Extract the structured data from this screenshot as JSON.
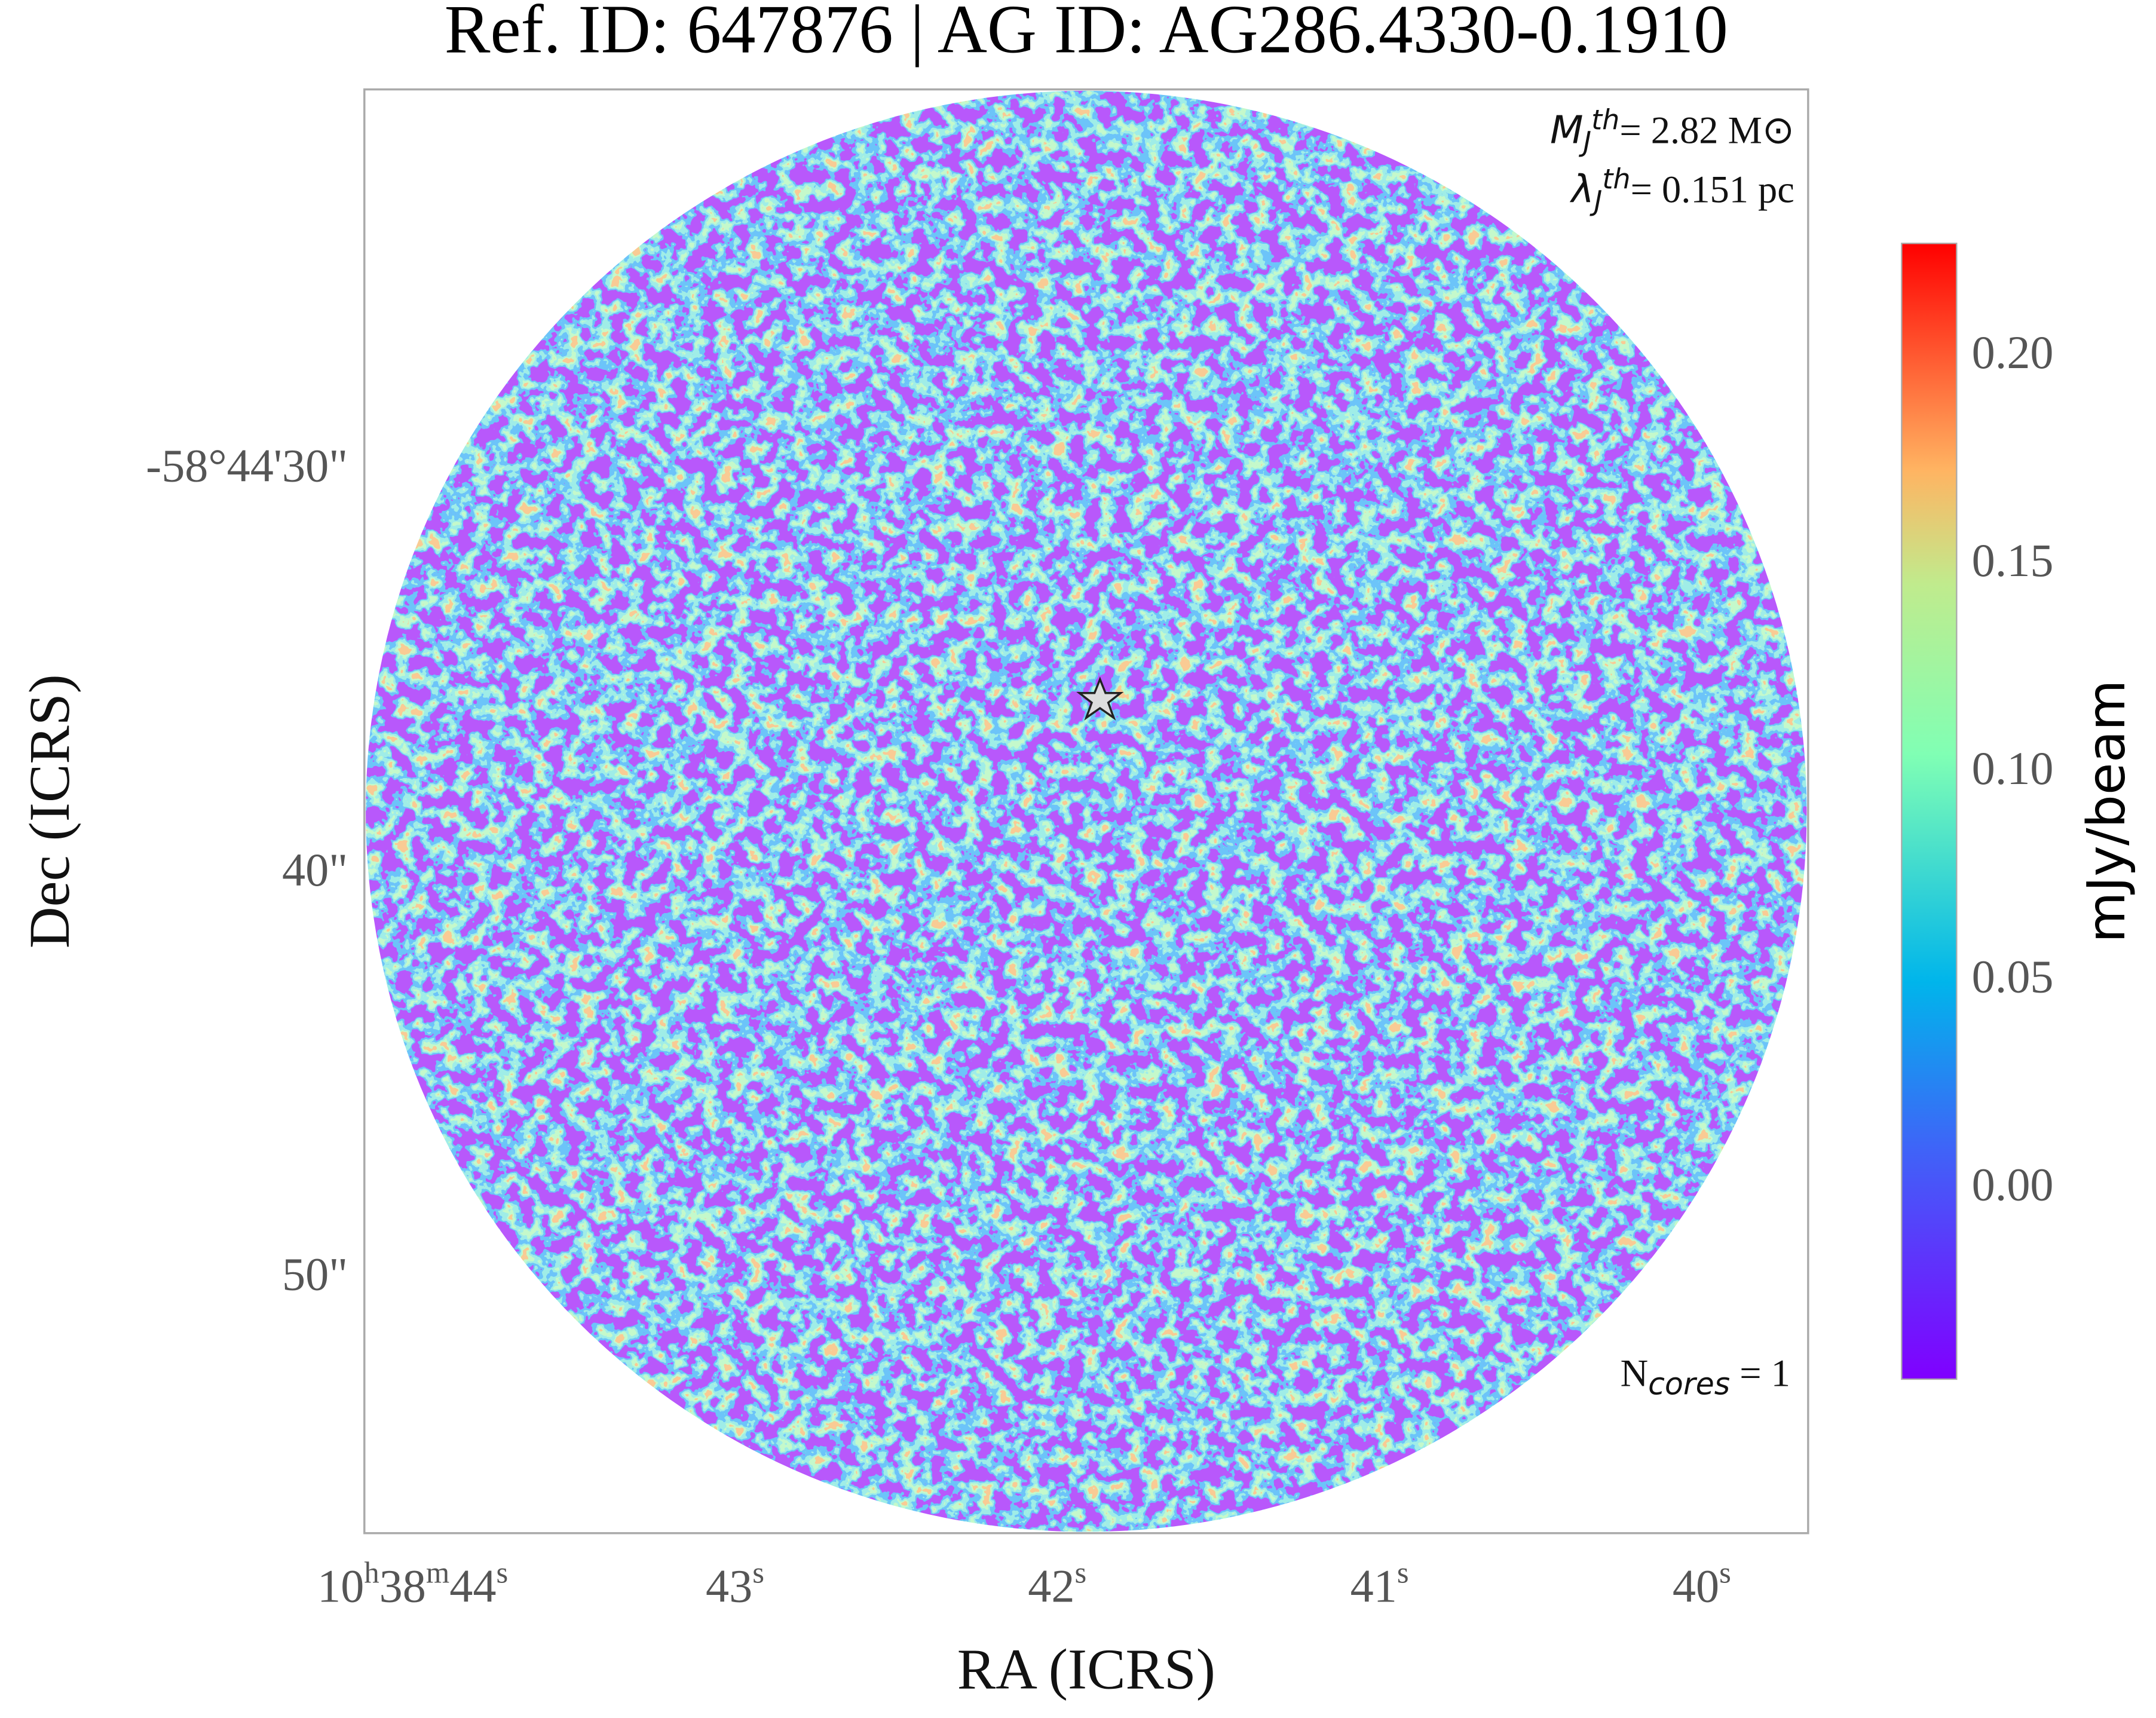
{
  "chart_data": {
    "type": "image",
    "title": "Ref. ID: 647876 | AG ID: AG286.4330-0.1910",
    "xlabel": "RA (ICRS)",
    "ylabel": "Dec (ICRS)",
    "xlim": [
      44.15,
      39.67
    ],
    "xticks": [
      {
        "value": 44,
        "label": "10h38m44s"
      },
      {
        "value": 43,
        "label": "43s"
      },
      {
        "value": 42,
        "label": "42s"
      },
      {
        "value": 41,
        "label": "41s"
      },
      {
        "value": 40,
        "label": "40s"
      }
    ],
    "ylim": [
      56.43,
      20.71
    ],
    "yticks": [
      {
        "value": 30,
        "label": "-58°44'30\""
      },
      {
        "value": 40,
        "label": "40\""
      },
      {
        "value": 50,
        "label": "50\""
      }
    ],
    "colorbar": {
      "label": "mJy/beam",
      "clim": [
        -0.047,
        0.226
      ],
      "ticks": [
        {
          "value": 0,
          "label": "0.00"
        },
        {
          "value": 0.05,
          "label": "0.05"
        },
        {
          "value": 0.1,
          "label": "0.10"
        },
        {
          "value": 0.15,
          "label": "0.15"
        },
        {
          "value": 0.2,
          "label": "0.20"
        }
      ]
    },
    "annotations": {
      "mass": [
        "M",
        "J",
        "th",
        "= 2.82 M⊙"
      ],
      "lambda": [
        "λ",
        "J",
        "th",
        "= 0.151 pc"
      ],
      "cores": [
        "N",
        "cores",
        " = 1"
      ]
    }
  }
}
